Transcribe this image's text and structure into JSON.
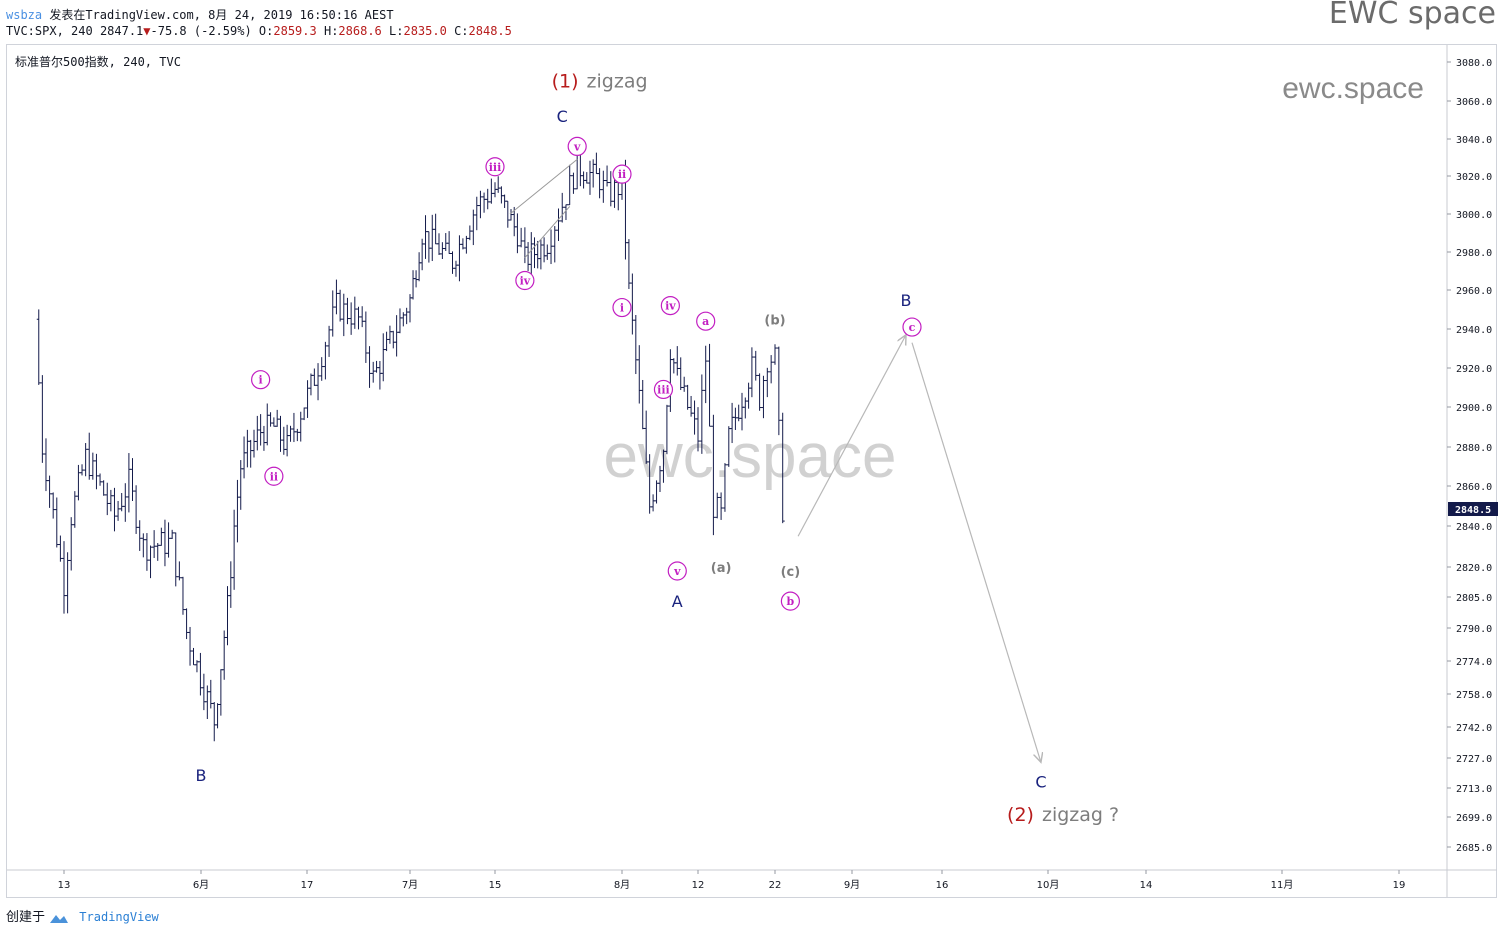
{
  "header": {
    "user": "wsbza",
    "published": "发表在TradingView.com, 8月 24, 2019 16:50:16 AEST",
    "symbol": "TVC:SPX, 240",
    "last": "2847.1",
    "change": "-75.8 (-2.59%)",
    "o_label": "O:",
    "o_value": "2859.3",
    "h_label": "H:",
    "h_value": "2868.6",
    "l_label": "L:",
    "l_value": "2835.0",
    "c_label": "C:",
    "c_value": "2848.5"
  },
  "brand": "EWC space",
  "footer": {
    "created": "创建于",
    "tradingview": "TradingView"
  },
  "colors": {
    "bars": "#131a4a",
    "magenta": "#c21ec2",
    "navy": "#1a237e",
    "red": "#b71c1c",
    "gray": "#7d7d7d",
    "arrow": "#b8b8b8"
  },
  "chart_data": {
    "type": "ohlc",
    "title": "标准普尔500指数, 240, TVC",
    "watermark_small": "ewc.space",
    "watermark_large": "ewc.space",
    "last_price": "2848.5",
    "y_ticks": [
      "3080.0",
      "3060.0",
      "3040.0",
      "3020.0",
      "3000.0",
      "2980.0",
      "2960.0",
      "2940.0",
      "2920.0",
      "2900.0",
      "2880.0",
      "2860.0",
      "2840.0",
      "2820.0",
      "2805.0",
      "2790.0",
      "2774.0",
      "2758.0",
      "2742.0",
      "2727.0",
      "2713.0",
      "2699.0",
      "2685.0"
    ],
    "x_ticks": [
      "13",
      "6月",
      "17",
      "7月",
      "15",
      "8月",
      "12",
      "22",
      "9月",
      "16",
      "10月",
      "14",
      "11月",
      "19"
    ],
    "x_range": [
      "2019-05-09",
      "2019-11-21"
    ],
    "price_path": [
      [
        "2019-05-09",
        2945
      ],
      [
        "2019-05-10",
        2880
      ],
      [
        "2019-05-13",
        2812
      ],
      [
        "2019-05-14",
        2845
      ],
      [
        "2019-05-16",
        2875
      ],
      [
        "2019-05-20",
        2845
      ],
      [
        "2019-05-22",
        2862
      ],
      [
        "2019-05-24",
        2830
      ],
      [
        "2019-05-28",
        2832
      ],
      [
        "2019-05-30",
        2788
      ],
      [
        "2019-06-03",
        2745
      ],
      [
        "2019-06-05",
        2800
      ],
      [
        "2019-06-06",
        2840
      ],
      [
        "2019-06-07",
        2870
      ],
      [
        "2019-06-10",
        2888
      ],
      [
        "2019-06-12",
        2890
      ],
      [
        "2019-06-14",
        2880
      ],
      [
        "2019-06-18",
        2915
      ],
      [
        "2019-06-21",
        2952
      ],
      [
        "2019-06-24",
        2945
      ],
      [
        "2019-06-26",
        2915
      ],
      [
        "2019-07-01",
        2955
      ],
      [
        "2019-07-03",
        2990
      ],
      [
        "2019-07-08",
        2975
      ],
      [
        "2019-07-12",
        3005
      ],
      [
        "2019-07-15",
        3013
      ],
      [
        "2019-07-18",
        2990
      ],
      [
        "2019-07-19",
        2976
      ],
      [
        "2019-07-22",
        2985
      ],
      [
        "2019-07-24",
        3005
      ],
      [
        "2019-07-26",
        3025
      ],
      [
        "2019-07-29",
        3018
      ],
      [
        "2019-07-30",
        3010
      ],
      [
        "2019-08-01",
        3015
      ],
      [
        "2019-08-02",
        2960
      ],
      [
        "2019-08-05",
        2850
      ],
      [
        "2019-08-06",
        2865
      ],
      [
        "2019-08-07",
        2880
      ],
      [
        "2019-08-08",
        2930
      ],
      [
        "2019-08-09",
        2915
      ],
      [
        "2019-08-12",
        2885
      ],
      [
        "2019-08-13",
        2925
      ],
      [
        "2019-08-14",
        2850
      ],
      [
        "2019-08-15",
        2845
      ],
      [
        "2019-08-16",
        2885
      ],
      [
        "2019-08-19",
        2920
      ],
      [
        "2019-08-20",
        2905
      ],
      [
        "2019-08-21",
        2925
      ],
      [
        "2019-08-22",
        2925
      ],
      [
        "2019-08-23",
        2848.5
      ]
    ],
    "wave_labels": [
      {
        "text": "i",
        "date": "2019-06-10",
        "price": 2914,
        "color": "magenta",
        "circled": true
      },
      {
        "text": "ii",
        "date": "2019-06-12",
        "price": 2865,
        "color": "magenta",
        "circled": true
      },
      {
        "text": "iii",
        "date": "2019-07-15",
        "price": 3025,
        "color": "magenta",
        "circled": true
      },
      {
        "text": "iv",
        "date": "2019-07-19",
        "price": 2965,
        "color": "magenta",
        "circled": true
      },
      {
        "text": "v",
        "date": "2019-07-26",
        "price": 3036,
        "color": "magenta",
        "circled": true
      },
      {
        "text": "ii",
        "date": "2019-08-01",
        "price": 3021,
        "color": "magenta",
        "circled": true
      },
      {
        "text": "i",
        "date": "2019-08-01",
        "price": 2951,
        "color": "magenta",
        "circled": true
      },
      {
        "text": "iv",
        "date": "2019-08-08",
        "price": 2952,
        "color": "magenta",
        "circled": true
      },
      {
        "text": "iii",
        "date": "2019-08-07",
        "price": 2909,
        "color": "magenta",
        "circled": true
      },
      {
        "text": "v",
        "date": "2019-08-09",
        "price": 2818,
        "color": "magenta",
        "circled": true
      },
      {
        "text": "a",
        "date": "2019-08-13",
        "price": 2944,
        "color": "magenta",
        "circled": true
      },
      {
        "text": "b",
        "date": "2019-08-24",
        "price": 2803,
        "color": "magenta",
        "circled": true
      },
      {
        "text": "c",
        "date": "2019-09-11",
        "price": 2941,
        "color": "magenta",
        "circled": true
      },
      {
        "text": "A",
        "date": "2019-08-09",
        "price": 2803,
        "color": "navy",
        "circled": false
      },
      {
        "text": "B",
        "date": "2019-06-01",
        "price": 2719,
        "color": "navy",
        "circled": false
      },
      {
        "text": "C",
        "date": "2019-07-24",
        "price": 3052,
        "color": "navy",
        "circled": false
      },
      {
        "text": "B",
        "date": "2019-09-10",
        "price": 2955,
        "color": "navy",
        "circled": false
      },
      {
        "text": "C",
        "date": "2019-09-30",
        "price": 2716,
        "color": "navy",
        "circled": false
      },
      {
        "text": "(a)",
        "date": "2019-08-15",
        "price": 2820,
        "color": "gray",
        "circled": false
      },
      {
        "text": "(b)",
        "date": "2019-08-22",
        "price": 2945,
        "color": "gray",
        "circled": false
      },
      {
        "text": "(c)",
        "date": "2019-08-24",
        "price": 2818,
        "color": "gray",
        "circled": false
      }
    ],
    "degree_labels": [
      {
        "num": "(1)",
        "tag": "zigzag",
        "date": "2019-07-29",
        "price": 3070
      },
      {
        "num": "(2)",
        "tag": "zigzag ?",
        "date": "2019-10-03",
        "price": 2700
      }
    ],
    "projection": [
      [
        "2019-08-25",
        2835
      ],
      [
        "2019-09-10",
        2937
      ],
      [
        "2019-09-11",
        2933
      ],
      [
        "2019-09-30",
        2725
      ]
    ],
    "triangle": [
      [
        [
          "2019-07-17",
          3000
        ],
        [
          "2019-07-26",
          3029
        ]
      ],
      [
        [
          "2019-07-19",
          2977
        ],
        [
          "2019-07-25",
          3004
        ]
      ]
    ]
  }
}
